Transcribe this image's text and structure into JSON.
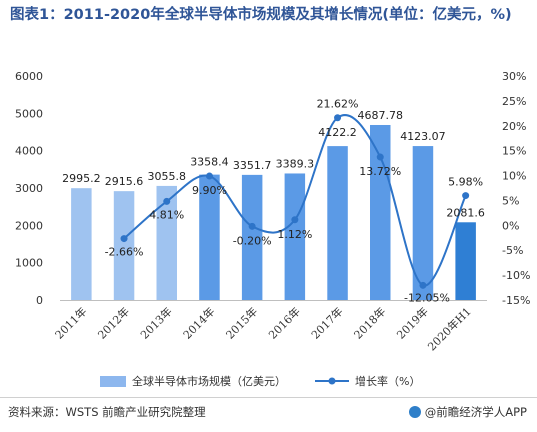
{
  "title": "图表1：2011-2020年全球半导体市场规模及其增长情况(单位：亿美元，%)",
  "source": "资料来源：WSTS 前瞻产业研究院整理",
  "brand": "@前瞻经济学人APP",
  "colors": {
    "bar_light": "#9fc3f0",
    "bar_mid": "#5b9ae6",
    "bar_dark": "#2f7fd4",
    "line": "#2e74c8",
    "title": "#2f5597"
  },
  "chart_data": {
    "type": "bar",
    "categories": [
      "2011年",
      "2012年",
      "2013年",
      "2014年",
      "2015年",
      "2016年",
      "2017年",
      "2018年",
      "2019年",
      "2020年H1"
    ],
    "series": [
      {
        "name": "全球半导体市场规模（亿美元）",
        "type": "bar",
        "axis": "left",
        "values": [
          2995.2,
          2915.6,
          3055.8,
          3358.4,
          3351.7,
          3389.3,
          4122.2,
          4687.78,
          4123.07,
          2081.6
        ],
        "labels": [
          "2995.2",
          "2915.6",
          "3055.8",
          "3358.4",
          "3351.7",
          "3389.3",
          "4122.2",
          "4687.78",
          "4123.07",
          "2081.6"
        ]
      },
      {
        "name": "增长率（%）",
        "type": "line",
        "axis": "right",
        "values": [
          null,
          -2.66,
          4.81,
          9.9,
          -0.2,
          1.12,
          21.62,
          13.72,
          -12.05,
          5.98
        ],
        "labels": [
          "",
          "-2.66%",
          "4.81%",
          "9.90%",
          "-0.20%",
          "1.12%",
          "21.62%",
          "13.72%",
          "-12.05%",
          "5.98%"
        ]
      }
    ],
    "ylim_left": [
      0,
      6000
    ],
    "yticks_left": [
      "0",
      "1000",
      "2000",
      "3000",
      "4000",
      "5000",
      "6000"
    ],
    "ylim_right": [
      -15,
      30
    ],
    "yticks_right": [
      "-15%",
      "-10%",
      "-5%",
      "0%",
      "5%",
      "10%",
      "15%",
      "20%",
      "25%",
      "30%"
    ],
    "grid": false,
    "legend": "bottom"
  }
}
